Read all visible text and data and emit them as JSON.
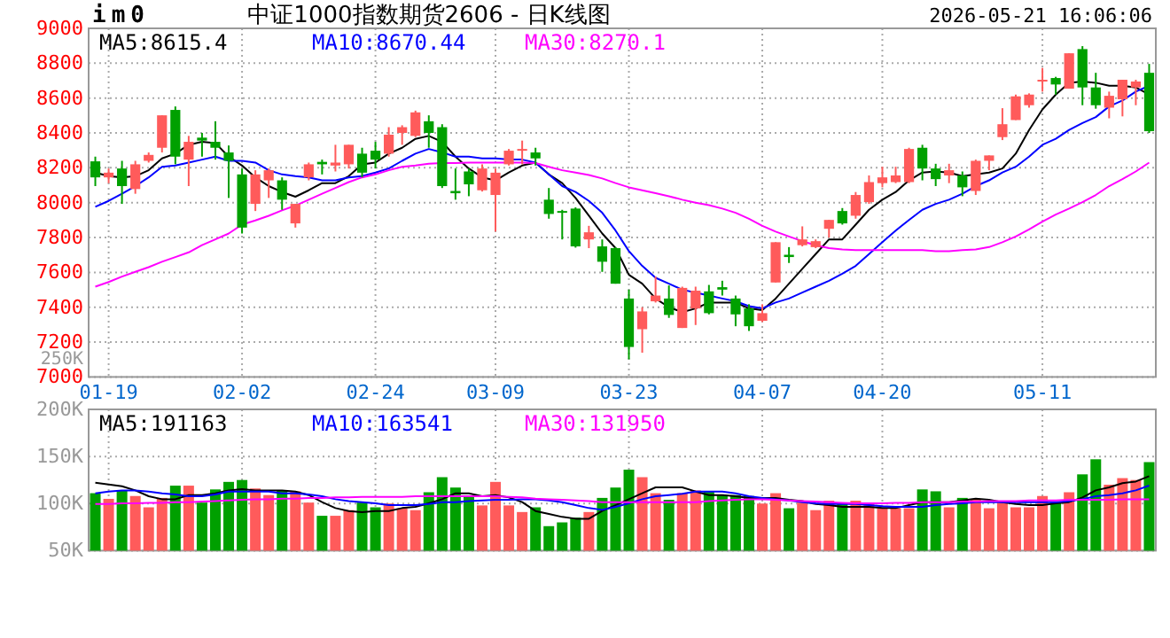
{
  "chart_data": [
    {
      "type": "candlestick",
      "title": "中证1000指数期货2606 - 日K线图",
      "annotations": [
        "im0",
        "2026-05-21 16:06:06"
      ],
      "categories": [
        null,
        "01-19",
        null,
        null,
        null,
        null,
        null,
        null,
        null,
        null,
        null,
        "02-02",
        null,
        null,
        null,
        null,
        null,
        null,
        null,
        null,
        null,
        "02-24",
        null,
        null,
        null,
        null,
        null,
        null,
        null,
        null,
        "03-09",
        null,
        null,
        null,
        null,
        null,
        null,
        null,
        null,
        null,
        "03-23",
        null,
        null,
        null,
        null,
        null,
        null,
        null,
        null,
        null,
        "04-07",
        null,
        null,
        null,
        null,
        null,
        null,
        null,
        null,
        "04-20",
        null,
        null,
        null,
        null,
        null,
        null,
        null,
        null,
        null,
        null,
        null,
        "05-11",
        null,
        null,
        null,
        null,
        null,
        null,
        null,
        null
      ],
      "ohlc": [
        [
          8237,
          8264,
          8095,
          8145
        ],
        [
          8145,
          8196,
          8112,
          8172
        ],
        [
          8196,
          8240,
          7993,
          8095
        ],
        [
          8078,
          8240,
          8051,
          8220
        ],
        [
          8240,
          8288,
          8230,
          8274
        ],
        [
          8315,
          8501,
          8288,
          8501
        ],
        [
          8532,
          8552,
          8220,
          8264
        ],
        [
          8247,
          8383,
          8095,
          8349
        ],
        [
          8373,
          8400,
          8264,
          8356
        ],
        [
          8349,
          8467,
          8247,
          8315
        ],
        [
          8288,
          8328,
          8027,
          8240
        ],
        [
          8162,
          8196,
          7823,
          7857
        ],
        [
          7993,
          8186,
          7952,
          8162
        ],
        [
          8128,
          8196,
          8027,
          8186
        ],
        [
          8128,
          8145,
          7959,
          8017
        ],
        [
          7881,
          7993,
          7857,
          7993
        ],
        [
          8145,
          8230,
          8128,
          8220
        ],
        [
          8234,
          8247,
          8162,
          8220
        ],
        [
          8213,
          8332,
          8179,
          8230
        ],
        [
          8220,
          8332,
          8196,
          8332
        ],
        [
          8281,
          8315,
          8145,
          8172
        ],
        [
          8298,
          8349,
          8196,
          8247
        ],
        [
          8281,
          8433,
          8264,
          8390
        ],
        [
          8400,
          8444,
          8332,
          8433
        ],
        [
          8383,
          8528,
          8376,
          8518
        ],
        [
          8467,
          8501,
          8315,
          8400
        ],
        [
          8433,
          8450,
          8084,
          8095
        ],
        [
          8067,
          8196,
          8017,
          8054
        ],
        [
          8179,
          8196,
          8037,
          8105
        ],
        [
          8071,
          8220,
          8064,
          8196
        ],
        [
          8044,
          8196,
          7834,
          8172
        ],
        [
          8220,
          8308,
          8213,
          8298
        ],
        [
          8298,
          8356,
          8220,
          8308
        ],
        [
          8288,
          8315,
          8213,
          8254
        ],
        [
          8017,
          8084,
          7908,
          7935
        ],
        [
          7952,
          7959,
          7789,
          7942
        ],
        [
          7966,
          7973,
          7742,
          7749
        ],
        [
          7789,
          7867,
          7739,
          7830
        ],
        [
          7749,
          7789,
          7603,
          7661
        ],
        [
          7739,
          7745,
          7535,
          7535
        ],
        [
          7450,
          7501,
          7101,
          7172
        ],
        [
          7274,
          7400,
          7139,
          7376
        ],
        [
          7434,
          7576,
          7427,
          7467
        ],
        [
          7450,
          7525,
          7339,
          7356
        ],
        [
          7281,
          7518,
          7281,
          7511
        ],
        [
          7393,
          7518,
          7298,
          7495
        ],
        [
          7491,
          7528,
          7359,
          7366
        ],
        [
          7515,
          7552,
          7467,
          7501
        ],
        [
          7450,
          7467,
          7291,
          7359
        ],
        [
          7393,
          7417,
          7264,
          7291
        ],
        [
          7322,
          7417,
          7315,
          7366
        ],
        [
          7542,
          7773,
          7542,
          7773
        ],
        [
          7701,
          7745,
          7654,
          7688
        ],
        [
          7756,
          7864,
          7749,
          7789
        ],
        [
          7745,
          7789,
          7739,
          7779
        ],
        [
          7850,
          7901,
          7800,
          7901
        ],
        [
          7952,
          7969,
          7874,
          7881
        ],
        [
          7925,
          8061,
          7908,
          8044
        ],
        [
          8003,
          8156,
          7993,
          8118
        ],
        [
          8112,
          8206,
          8088,
          8145
        ],
        [
          8118,
          8206,
          8112,
          8156
        ],
        [
          8118,
          8315,
          8112,
          8308
        ],
        [
          8315,
          8332,
          8128,
          8196
        ],
        [
          8196,
          8223,
          8095,
          8135
        ],
        [
          8156,
          8223,
          8112,
          8186
        ],
        [
          8156,
          8179,
          8037,
          8088
        ],
        [
          8067,
          8247,
          8044,
          8240
        ],
        [
          8240,
          8271,
          8186,
          8271
        ],
        [
          8376,
          8542,
          8359,
          8450
        ],
        [
          8474,
          8620,
          8474,
          8610
        ],
        [
          8559,
          8627,
          8545,
          8620
        ],
        [
          8698,
          8773,
          8637,
          8705
        ],
        [
          8715,
          8722,
          8620,
          8678
        ],
        [
          8654,
          8857,
          8654,
          8857
        ],
        [
          8881,
          8898,
          8559,
          8661
        ],
        [
          8661,
          8745,
          8539,
          8559
        ],
        [
          8545,
          8637,
          8484,
          8613
        ],
        [
          8593,
          8705,
          8495,
          8705
        ],
        [
          8661,
          8705,
          8559,
          8695
        ],
        [
          8745,
          8796,
          8400,
          8410
        ]
      ],
      "colors": [
        "#00a000",
        "#ff5b5b",
        "#00a000",
        "#ff5b5b",
        "#ff5b5b",
        "#ff5b5b",
        "#00a000",
        "#ff5b5b",
        "#00a000",
        "#00a000",
        "#00a000",
        "#00a000",
        "#ff5b5b",
        "#ff5b5b",
        "#00a000",
        "#ff5b5b",
        "#ff5b5b",
        "#00a000",
        "#ff5b5b",
        "#ff5b5b",
        "#00a000",
        "#00a000",
        "#ff5b5b",
        "#ff5b5b",
        "#ff5b5b",
        "#00a000",
        "#00a000",
        "#00a000",
        "#00a000",
        "#ff5b5b",
        "#ff5b5b",
        "#ff5b5b",
        "#ff5b5b",
        "#00a000",
        "#00a000",
        "#00a000",
        "#00a000",
        "#ff5b5b",
        "#00a000",
        "#00a000",
        "#00a000",
        "#ff5b5b",
        "#ff5b5b",
        "#00a000",
        "#ff5b5b",
        "#ff5b5b",
        "#00a000",
        "#00a000",
        "#00a000",
        "#00a000",
        "#ff5b5b",
        "#ff5b5b",
        "#00a000",
        "#ff5b5b",
        "#ff5b5b",
        "#ff5b5b",
        "#00a000",
        "#ff5b5b",
        "#ff5b5b",
        "#ff5b5b",
        "#ff5b5b",
        "#ff5b5b",
        "#00a000",
        "#00a000",
        "#ff5b5b",
        "#00a000",
        "#ff5b5b",
        "#ff5b5b",
        "#ff5b5b",
        "#ff5b5b",
        "#ff5b5b",
        "#ff5b5b",
        "#00a000",
        "#ff5b5b",
        "#00a000",
        "#00a000",
        "#ff5b5b",
        "#ff5b5b",
        "#ff5b5b",
        "#00a000"
      ],
      "series": [
        {
          "name": "MA5:8615.4",
          "type": "line",
          "color": "#000000",
          "values": [
            8173,
            8152,
            8145,
            8152,
            8186,
            8254,
            8281,
            8332,
            8349,
            8342,
            8264,
            8213,
            8145,
            8095,
            8061,
            8034,
            8071,
            8112,
            8112,
            8152,
            8220,
            8230,
            8281,
            8315,
            8366,
            8383,
            8349,
            8264,
            8196,
            8145,
            8128,
            8173,
            8213,
            8230,
            8162,
            8112,
            8027,
            7925,
            7823,
            7739,
            7586,
            7535,
            7450,
            7400,
            7372,
            7393,
            7427,
            7427,
            7427,
            7393,
            7383,
            7450,
            7535,
            7620,
            7705,
            7789,
            7789,
            7874,
            7959,
            8017,
            8061,
            8128,
            8173,
            8179,
            8173,
            8152,
            8162,
            8173,
            8196,
            8281,
            8417,
            8535,
            8620,
            8688,
            8695,
            8688,
            8671,
            8671,
            8661,
            8620
          ]
        },
        {
          "name": "MA10:8670.44",
          "type": "line",
          "color": "#0000ff",
          "values": [
            7976,
            8010,
            8051,
            8095,
            8145,
            8206,
            8213,
            8230,
            8247,
            8264,
            8240,
            8240,
            8230,
            8186,
            8162,
            8152,
            8145,
            8128,
            8128,
            8145,
            8152,
            8173,
            8196,
            8240,
            8281,
            8308,
            8288,
            8264,
            8264,
            8254,
            8254,
            8247,
            8247,
            8230,
            8162,
            8095,
            8061,
            8010,
            7942,
            7840,
            7722,
            7637,
            7569,
            7535,
            7501,
            7484,
            7467,
            7450,
            7434,
            7406,
            7393,
            7427,
            7450,
            7484,
            7518,
            7552,
            7593,
            7637,
            7705,
            7773,
            7840,
            7901,
            7959,
            7993,
            8017,
            8051,
            8095,
            8128,
            8173,
            8206,
            8264,
            8332,
            8366,
            8417,
            8457,
            8491,
            8552,
            8586,
            8637,
            8671
          ]
        },
        {
          "name": "MA30:8270.1",
          "type": "line",
          "color": "#ff00ff",
          "values": [
            7518,
            7545,
            7576,
            7603,
            7630,
            7661,
            7688,
            7715,
            7756,
            7789,
            7823,
            7874,
            7898,
            7925,
            7956,
            7983,
            8017,
            8051,
            8084,
            8118,
            8145,
            8162,
            8186,
            8206,
            8213,
            8223,
            8227,
            8227,
            8230,
            8230,
            8230,
            8230,
            8230,
            8227,
            8206,
            8186,
            8173,
            8159,
            8139,
            8112,
            8088,
            8071,
            8054,
            8037,
            8017,
            8000,
            7986,
            7966,
            7942,
            7908,
            7867,
            7834,
            7806,
            7779,
            7756,
            7739,
            7732,
            7728,
            7728,
            7728,
            7728,
            7728,
            7728,
            7722,
            7722,
            7728,
            7732,
            7745,
            7773,
            7806,
            7847,
            7891,
            7932,
            7966,
            8003,
            8044,
            8095,
            8135,
            8179,
            8230
          ]
        }
      ],
      "ylim": [
        7000,
        9000
      ],
      "yticks": [
        7000,
        7200,
        7400,
        7600,
        7800,
        8000,
        8200,
        8400,
        8600,
        8800,
        9000
      ],
      "grid": true,
      "legend": "top left"
    },
    {
      "type": "bar",
      "annotations": [
        "250K"
      ],
      "tick_labels": "y",
      "categories": [
        null,
        null,
        null,
        null,
        null,
        null,
        null,
        null,
        null,
        null,
        null,
        null,
        null,
        null,
        null,
        null,
        null,
        null,
        null,
        null,
        null,
        null,
        null,
        null,
        null,
        null,
        null,
        null,
        null,
        null,
        null,
        null,
        null,
        null,
        null,
        null,
        null,
        null,
        null,
        null,
        null,
        null,
        null,
        null,
        null,
        null,
        null,
        null,
        null,
        null,
        null,
        null,
        null,
        null,
        null,
        null,
        null,
        null,
        null,
        null,
        null,
        null,
        null,
        null,
        null,
        null,
        null,
        null,
        null,
        null,
        null,
        null,
        null,
        null,
        null,
        null,
        null,
        null,
        null,
        null
      ],
      "values": [
        111,
        105,
        114,
        108,
        96,
        106,
        119,
        119,
        101,
        115,
        123,
        125,
        116,
        109,
        114,
        113,
        101,
        87,
        87,
        93,
        101,
        96,
        100,
        95,
        93,
        112,
        128,
        117,
        108,
        98,
        123,
        98,
        91,
        96,
        76,
        80,
        85,
        91,
        106,
        117,
        136,
        128,
        111,
        104,
        111,
        114,
        113,
        109,
        109,
        108,
        100,
        111,
        95,
        101,
        93,
        103,
        100,
        103,
        101,
        95,
        95,
        95,
        115,
        113,
        96,
        106,
        105,
        95,
        103,
        96,
        96,
        108,
        101,
        112,
        131,
        147,
        120,
        127,
        125,
        144
      ],
      "colors": [
        "#00a000",
        "#ff5b5b",
        "#00a000",
        "#ff5b5b",
        "#ff5b5b",
        "#ff5b5b",
        "#00a000",
        "#ff5b5b",
        "#00a000",
        "#00a000",
        "#00a000",
        "#00a000",
        "#ff5b5b",
        "#ff5b5b",
        "#00a000",
        "#ff5b5b",
        "#ff5b5b",
        "#00a000",
        "#ff5b5b",
        "#ff5b5b",
        "#00a000",
        "#00a000",
        "#ff5b5b",
        "#ff5b5b",
        "#ff5b5b",
        "#00a000",
        "#00a000",
        "#00a000",
        "#00a000",
        "#ff5b5b",
        "#ff5b5b",
        "#ff5b5b",
        "#ff5b5b",
        "#00a000",
        "#00a000",
        "#00a000",
        "#00a000",
        "#ff5b5b",
        "#00a000",
        "#00a000",
        "#00a000",
        "#ff5b5b",
        "#ff5b5b",
        "#00a000",
        "#ff5b5b",
        "#ff5b5b",
        "#00a000",
        "#00a000",
        "#00a000",
        "#00a000",
        "#ff5b5b",
        "#ff5b5b",
        "#00a000",
        "#ff5b5b",
        "#ff5b5b",
        "#ff5b5b",
        "#00a000",
        "#ff5b5b",
        "#ff5b5b",
        "#ff5b5b",
        "#ff5b5b",
        "#ff5b5b",
        "#00a000",
        "#00a000",
        "#ff5b5b",
        "#00a000",
        "#ff5b5b",
        "#ff5b5b",
        "#ff5b5b",
        "#ff5b5b",
        "#ff5b5b",
        "#ff5b5b",
        "#00a000",
        "#ff5b5b",
        "#00a000",
        "#00a000",
        "#ff5b5b",
        "#ff5b5b",
        "#ff5b5b",
        "#00a000"
      ],
      "series": [
        {
          "name": "MA5:191163",
          "type": "line",
          "color": "#000000",
          "values": [
            122.2,
            120.3,
            118.4,
            114,
            107.8,
            104.6,
            104.6,
            109,
            109,
            110.9,
            114,
            115.3,
            114,
            114,
            114,
            112.8,
            109,
            101.5,
            95.2,
            92.1,
            90.8,
            92.1,
            92.1,
            95.2,
            96.5,
            100.2,
            104.6,
            110.9,
            110.9,
            107.8,
            109,
            106.5,
            101.5,
            92.1,
            88.9,
            85.8,
            83.9,
            83.9,
            92.1,
            98.3,
            104.6,
            110.9,
            117.2,
            117.2,
            117.2,
            112.8,
            109,
            109,
            107.8,
            105.9,
            105.9,
            105.9,
            104,
            102.7,
            99.6,
            98.3,
            96.5,
            96.5,
            96.5,
            95.2,
            95.2,
            98.3,
            101.5,
            101.5,
            101.5,
            103.4,
            105.2,
            104,
            101.5,
            99.6,
            98.3,
            98.3,
            100.2,
            101.5,
            106.5,
            114,
            117.2,
            121.6,
            123.4,
            129.1
          ]
        },
        {
          "name": "MA10:163541",
          "type": "line",
          "color": "#0000ff",
          "values": [
            110.9,
            112.8,
            114,
            114,
            112.8,
            110.9,
            109.6,
            107.8,
            107.8,
            109.6,
            112.8,
            112.8,
            112.8,
            112.8,
            110.9,
            110.9,
            109.6,
            107.8,
            104.6,
            102.7,
            101.5,
            100.2,
            98.3,
            98.3,
            98.3,
            99.6,
            101.5,
            101.5,
            102.7,
            103.4,
            104,
            104,
            104.6,
            104.6,
            103.4,
            101.5,
            98.3,
            95.2,
            93.3,
            96.5,
            100.2,
            104.6,
            107.8,
            109,
            110.3,
            112.8,
            112.8,
            112.8,
            110.9,
            107.8,
            105.9,
            104.6,
            103.4,
            101.5,
            100.2,
            99.6,
            99.6,
            99.6,
            98.3,
            97.1,
            96.5,
            96.5,
            96.5,
            98.3,
            99.6,
            100.2,
            101.5,
            101.5,
            101.5,
            101.5,
            101.5,
            101.5,
            101.5,
            102.7,
            104.6,
            107.8,
            109,
            110.9,
            114,
            119.1
          ]
        },
        {
          "name": "MA30:131950",
          "type": "line",
          "color": "#ff00ff",
          "values": [
            99.6,
            99.6,
            100.2,
            100.2,
            100.8,
            100.8,
            101.5,
            101.5,
            102.1,
            102.7,
            103.4,
            104,
            104.6,
            104.6,
            105.2,
            105.2,
            105.9,
            105.9,
            106.5,
            106.5,
            107.1,
            107.1,
            107.1,
            107.1,
            107.8,
            107.8,
            107.8,
            107.8,
            107.8,
            107.8,
            107.8,
            107.1,
            106.5,
            105.2,
            104.6,
            104,
            103.4,
            102.7,
            101.5,
            101.5,
            101.5,
            101.5,
            101.5,
            101.5,
            101.5,
            101.5,
            102.7,
            103.4,
            104,
            104.6,
            104.6,
            104,
            103.4,
            102.7,
            102.1,
            101.5,
            100.8,
            100.2,
            100.2,
            100.2,
            100.8,
            100.8,
            101.5,
            101.5,
            101.5,
            102.1,
            102.1,
            102.7,
            102.7,
            102.7,
            103.4,
            103.4,
            103.4,
            104,
            104,
            104,
            104,
            104.6,
            104.6,
            104.6
          ]
        }
      ],
      "ylim": [
        50,
        200
      ],
      "yticks": [
        {
          "value": 50,
          "label": "50K"
        },
        {
          "value": 100,
          "label": "100K"
        },
        {
          "value": 150,
          "label": "150K"
        },
        {
          "value": 200,
          "label": "200K"
        }
      ],
      "grid": true,
      "legend": "top left"
    }
  ]
}
